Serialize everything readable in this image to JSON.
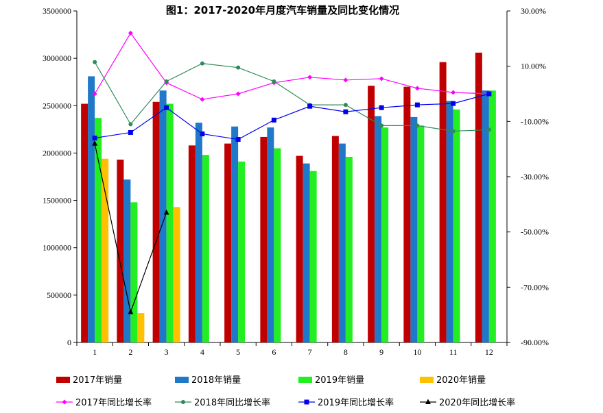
{
  "chart_data": {
    "type": "bar",
    "title": "图1：2017-2020年月度汽车销量及同比变化情况",
    "categories": [
      "1",
      "2",
      "3",
      "4",
      "5",
      "6",
      "7",
      "8",
      "9",
      "10",
      "11",
      "12"
    ],
    "bar_series": [
      {
        "name": "2017年销量",
        "color": "#c00000",
        "values": [
          2520000,
          1930000,
          2540000,
          2080000,
          2100000,
          2170000,
          1970000,
          2180000,
          2710000,
          2700000,
          2960000,
          3060000
        ]
      },
      {
        "name": "2018年销量",
        "color": "#1f78c8",
        "values": [
          2810000,
          1720000,
          2660000,
          2320000,
          2280000,
          2270000,
          1890000,
          2100000,
          2390000,
          2380000,
          2550000,
          2660000
        ]
      },
      {
        "name": "2019年销量",
        "color": "#22ee22",
        "values": [
          2370000,
          1480000,
          2520000,
          1980000,
          1910000,
          2050000,
          1810000,
          1960000,
          2270000,
          2290000,
          2460000,
          2660000
        ]
      },
      {
        "name": "2020年销量",
        "color": "#ffc000",
        "values": [
          1940000,
          310000,
          1430000,
          null,
          null,
          null,
          null,
          null,
          null,
          null,
          null,
          null
        ]
      }
    ],
    "line_series": [
      {
        "name": "2017年同比增长率",
        "color": "#ff00ff",
        "marker": "diamond",
        "values": [
          0.0,
          22.0,
          4.0,
          -2.0,
          0.0,
          4.0,
          6.0,
          5.0,
          5.5,
          2.0,
          0.5,
          0.0
        ]
      },
      {
        "name": "2018年同比增长率",
        "color": "#2e8b57",
        "marker": "circle",
        "values": [
          11.5,
          -11.0,
          4.5,
          11.0,
          9.5,
          4.5,
          -4.0,
          -4.0,
          -11.5,
          -11.5,
          -13.5,
          -13.0
        ]
      },
      {
        "name": "2019年同比增长率",
        "color": "#0000ee",
        "marker": "square",
        "values": [
          -16.0,
          -14.0,
          -5.0,
          -14.5,
          -16.5,
          -9.5,
          -4.5,
          -6.5,
          -5.0,
          -4.0,
          -3.5,
          0.0
        ]
      },
      {
        "name": "2020年同比增长率",
        "color": "#000000",
        "marker": "triangle",
        "values": [
          -18.0,
          -79.0,
          -43.0,
          null,
          null,
          null,
          null,
          null,
          null,
          null,
          null,
          null
        ]
      }
    ],
    "y_left": {
      "min": 0,
      "max": 3500000,
      "ticks": [
        "0",
        "500000",
        "1000000",
        "1500000",
        "2000000",
        "2500000",
        "3000000",
        "3500000"
      ]
    },
    "y_right": {
      "min": -90,
      "max": 30,
      "ticks": [
        "-90.00%",
        "-70.00%",
        "-50.00%",
        "-30.00%",
        "-10.00%",
        "10.00%",
        "30.00%"
      ]
    },
    "grid": false,
    "legend_position": "bottom"
  }
}
